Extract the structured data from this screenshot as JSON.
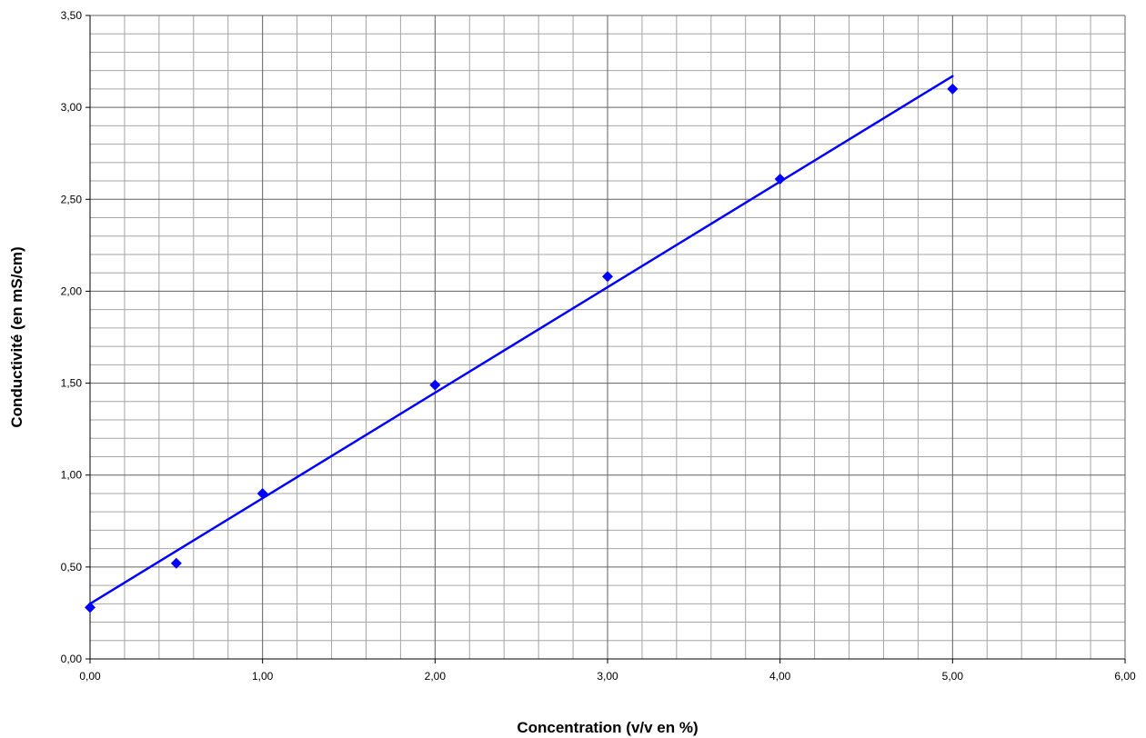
{
  "chart_data": {
    "type": "scatter",
    "xlabel": "Concentration (v/v en %)",
    "ylabel": "Conductivité  (en  mS/cm)",
    "xlim": [
      0,
      6
    ],
    "ylim": [
      0,
      3.5
    ],
    "x_ticks": [
      "0,00",
      "1,00",
      "2,00",
      "3,00",
      "4,00",
      "5,00",
      "6,00"
    ],
    "y_ticks": [
      "0,00",
      "0,50",
      "1,00",
      "1,50",
      "2,00",
      "2,50",
      "3,00",
      "3,50"
    ],
    "grid": true,
    "legend": "none",
    "series": [
      {
        "type": "scatter",
        "marker": "diamond",
        "color": "#0000ff",
        "x": [
          0,
          0.5,
          1,
          2,
          3,
          4,
          5
        ],
        "y": [
          0.28,
          0.52,
          0.9,
          1.49,
          2.08,
          2.61,
          3.1
        ]
      }
    ],
    "trendline": {
      "type": "linear",
      "color": "#0000ff",
      "x": [
        0,
        5
      ],
      "y": [
        0.3,
        3.17
      ]
    }
  }
}
